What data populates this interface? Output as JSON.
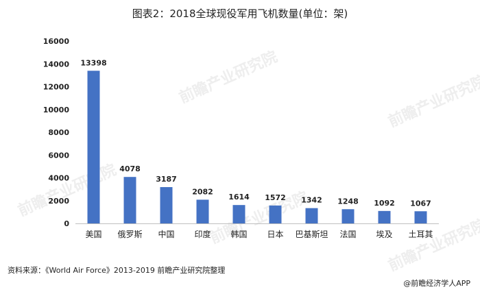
{
  "title": "图表2：2018全球现役军用飞机数量(单位：架)",
  "source": "资料来源：《World Air Force》2013-2019 前瞻产业研究院整理",
  "credit": "@前瞻经济学人APP",
  "watermark": "前瞻产业研究院",
  "colors": {
    "bar": "#4472c4",
    "axis": "#bfbfbf",
    "text": "#222222"
  },
  "chart_data": {
    "type": "bar",
    "title": "图表2：2018全球现役军用飞机数量(单位：架)",
    "xlabel": "",
    "ylabel": "",
    "categories": [
      "美国",
      "俄罗斯",
      "中国",
      "印度",
      "韩国",
      "日本",
      "巴基斯坦",
      "法国",
      "埃及",
      "土耳其"
    ],
    "values": [
      13398,
      4078,
      3187,
      2082,
      1614,
      1572,
      1342,
      1248,
      1092,
      1067
    ],
    "ylim": [
      0,
      16000
    ],
    "yticks": [
      0,
      2000,
      4000,
      6000,
      8000,
      10000,
      12000,
      14000,
      16000
    ],
    "grid": false,
    "legend": "none",
    "data_labels": true
  }
}
